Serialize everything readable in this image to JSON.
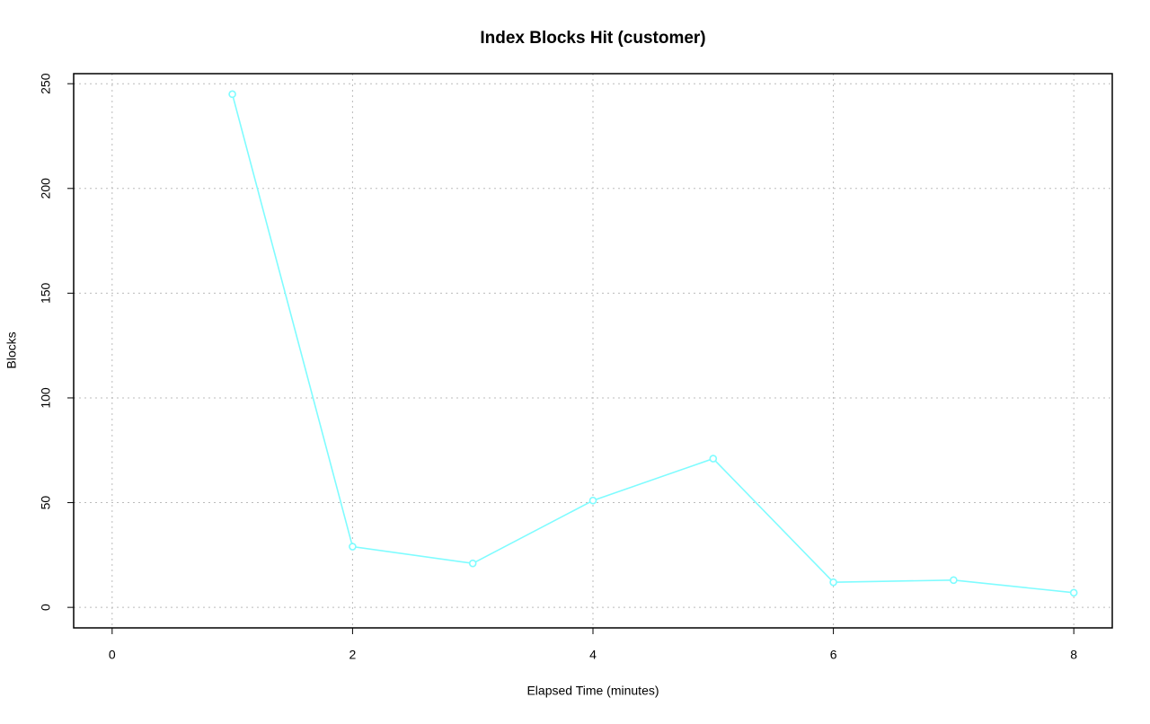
{
  "chart_data": {
    "type": "line",
    "title": "Index Blocks Hit (customer)",
    "x_label": "Elapsed Time (minutes)",
    "y_label": "Blocks",
    "x": [
      1,
      2,
      3,
      4,
      5,
      6,
      7,
      8
    ],
    "series": [
      {
        "name": "customer",
        "color": "#7ffcff",
        "values": [
          245,
          29,
          21,
          51,
          71,
          12,
          13,
          7
        ]
      }
    ],
    "xlim": [
      -0.32,
      8.32
    ],
    "xticks": [
      0,
      2,
      4,
      6,
      8
    ],
    "ylim": [
      -9.8,
      254.8
    ],
    "yticks": [
      0,
      50,
      100,
      150,
      200,
      250
    ],
    "grid": true
  }
}
